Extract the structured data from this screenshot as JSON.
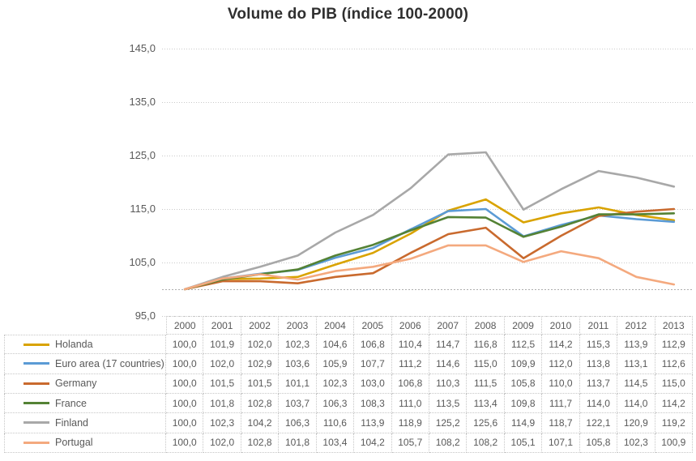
{
  "title": "Volume do PIB (índice 100-2000)",
  "chart_data": {
    "type": "line",
    "title": "Volume do PIB (índice 100-2000)",
    "x": [
      "2000",
      "2001",
      "2002",
      "2003",
      "2004",
      "2005",
      "2006",
      "2007",
      "2008",
      "2009",
      "2010",
      "2011",
      "2012",
      "2013"
    ],
    "series": [
      {
        "name": "Holanda",
        "color": "#d9a300",
        "values": [
          100.0,
          101.9,
          102.0,
          102.3,
          104.6,
          106.8,
          110.4,
          114.7,
          116.8,
          112.5,
          114.2,
          115.3,
          113.9,
          112.9
        ]
      },
      {
        "name": "Euro area (17 countries)",
        "color": "#5b9bd5",
        "values": [
          100.0,
          102.0,
          102.9,
          103.6,
          105.9,
          107.7,
          111.2,
          114.6,
          115.0,
          109.9,
          112.0,
          113.8,
          113.1,
          112.6
        ]
      },
      {
        "name": "Germany",
        "color": "#c96a2e",
        "values": [
          100.0,
          101.5,
          101.5,
          101.1,
          102.3,
          103.0,
          106.8,
          110.3,
          111.5,
          105.8,
          110.0,
          113.7,
          114.5,
          115.0
        ]
      },
      {
        "name": "France",
        "color": "#548235",
        "values": [
          100.0,
          101.8,
          102.8,
          103.7,
          106.3,
          108.3,
          111.0,
          113.5,
          113.4,
          109.8,
          111.7,
          114.0,
          114.0,
          114.2
        ]
      },
      {
        "name": "Finland",
        "color": "#a8a8a8",
        "values": [
          100.0,
          102.3,
          104.2,
          106.3,
          110.6,
          113.9,
          118.9,
          125.2,
          125.6,
          114.9,
          118.7,
          122.1,
          120.9,
          119.2
        ]
      },
      {
        "name": "Portugal",
        "color": "#f4a97e",
        "values": [
          100.0,
          102.0,
          102.8,
          101.8,
          103.4,
          104.2,
          105.7,
          108.2,
          108.2,
          105.1,
          107.1,
          105.8,
          102.3,
          100.9
        ]
      }
    ],
    "ylim": [
      95,
      145
    ],
    "ytick_values": [
      145,
      135,
      125,
      115,
      105,
      95
    ],
    "ytick_labels": [
      "145,0",
      "135,0",
      "125,0",
      "115,0",
      "105,0",
      "95,0"
    ],
    "baseline_value": 100,
    "grid": "horizontal-dotted",
    "legend_position": "left-column-of-table",
    "decimal_separator": ","
  }
}
